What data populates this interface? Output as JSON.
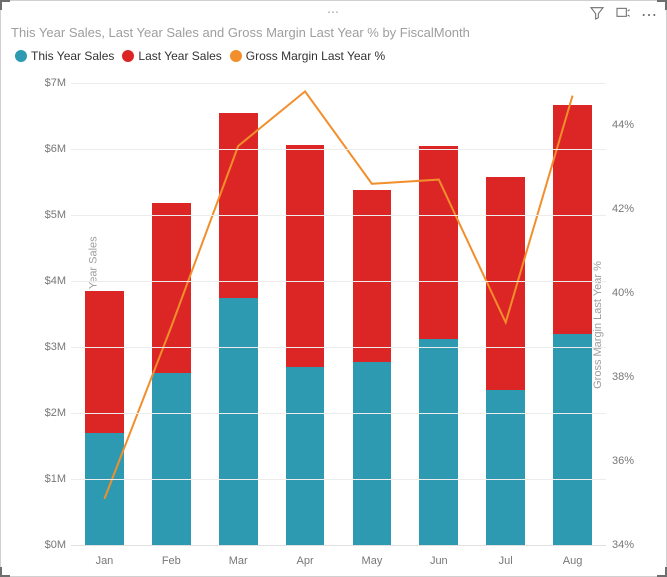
{
  "title": "This Year Sales, Last Year Sales and Gross Margin Last Year % by FiscalMonth",
  "legend": [
    {
      "label": "This Year Sales",
      "color": "#2e9ab2",
      "shape": "circle"
    },
    {
      "label": "Last Year Sales",
      "color": "#dc2626",
      "shape": "circle"
    },
    {
      "label": "Gross Margin Last Year %",
      "color": "#f28e2b",
      "shape": "circle"
    }
  ],
  "toolbar": {
    "filter_icon": "filter-icon",
    "focus_icon": "focus-mode-icon",
    "more_icon": "more-options-icon"
  },
  "chart": {
    "type": "stacked-bar-with-line",
    "background_color": "#ffffff",
    "grid_color": "#ececec",
    "bar_width_ratio": 0.58,
    "categories": [
      "Jan",
      "Feb",
      "Mar",
      "Apr",
      "May",
      "Jun",
      "Jul",
      "Aug"
    ],
    "series_bottom": {
      "name": "This Year Sales",
      "color": "#2e9ab2",
      "values": [
        1700000,
        2600000,
        3750000,
        2700000,
        2780000,
        3120000,
        2350000,
        3200000
      ]
    },
    "series_top": {
      "name": "Last Year Sales",
      "color": "#dc2626",
      "values": [
        2150000,
        2580000,
        2800000,
        3360000,
        2600000,
        2920000,
        3230000,
        3470000
      ]
    },
    "series_line": {
      "name": "Gross Margin Last Year %",
      "color": "#f28e2b",
      "line_width": 2,
      "values": [
        35.1,
        39.2,
        43.5,
        44.8,
        42.6,
        42.7,
        39.3,
        44.7
      ]
    },
    "y_left": {
      "label": "This Year Sales and Last Year Sales",
      "min": 0,
      "max": 7000000,
      "ticks": [
        0,
        1000000,
        2000000,
        3000000,
        4000000,
        5000000,
        6000000,
        7000000
      ],
      "tick_labels": [
        "$0M",
        "$1M",
        "$2M",
        "$3M",
        "$4M",
        "$5M",
        "$6M",
        "$7M"
      ],
      "label_color": "#9e9e9e",
      "label_fontsize": 11
    },
    "y_right": {
      "label": "Gross Margin Last Year %",
      "min": 34,
      "max": 45,
      "ticks": [
        34,
        36,
        38,
        40,
        42,
        44
      ],
      "tick_labels": [
        "34%",
        "36%",
        "38%",
        "40%",
        "42%",
        "44%"
      ],
      "label_color": "#9e9e9e",
      "label_fontsize": 11
    }
  }
}
